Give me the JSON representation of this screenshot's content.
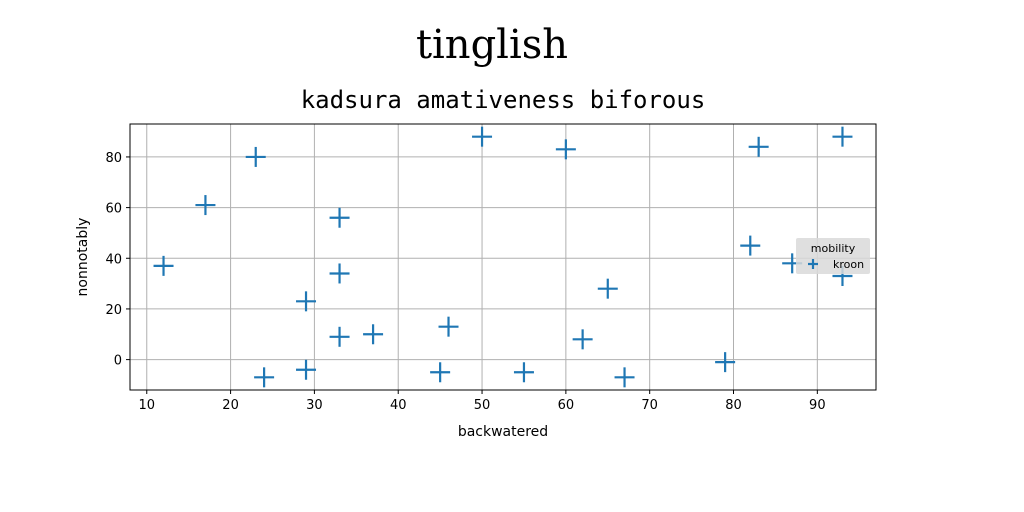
{
  "suptitle": "tinglish",
  "chart_data": {
    "type": "scatter",
    "title": "kadsura amativeness biforous",
    "xlabel": "backwatered",
    "ylabel": "nonnotably",
    "xlim": [
      8,
      97
    ],
    "ylim": [
      -12,
      93
    ],
    "xticks": [
      10,
      20,
      30,
      40,
      50,
      60,
      70,
      80,
      90
    ],
    "yticks": [
      0,
      20,
      40,
      60,
      80
    ],
    "grid": true,
    "legend": {
      "title": "mobility",
      "placement": "right"
    },
    "marker": "+",
    "color": "#1f77b4",
    "series": [
      {
        "name": "kroon",
        "x": [
          12,
          17,
          23,
          24,
          29,
          29,
          33,
          33,
          33,
          37,
          45,
          46,
          50,
          55,
          60,
          62,
          65,
          67,
          79,
          82,
          83,
          87,
          93,
          93
        ],
        "y": [
          37,
          61,
          80,
          -7,
          23,
          -4,
          56,
          34,
          9,
          10,
          -5,
          13,
          88,
          -5,
          83,
          8,
          28,
          -7,
          -1,
          45,
          84,
          38,
          33,
          88
        ]
      }
    ]
  }
}
